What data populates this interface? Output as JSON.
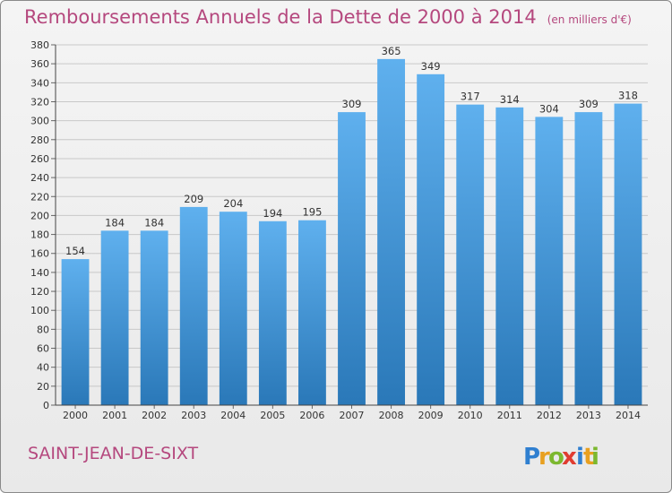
{
  "title": "Remboursements Annuels de la Dette de 2000 à 2014",
  "unit": "(en milliers d'€)",
  "city": "SAINT-JEAN-DE-SIXT",
  "logo": {
    "text": "Proxiti",
    "letters": [
      "P",
      "r",
      "o",
      "x",
      "i",
      "t",
      "i"
    ]
  },
  "colors": {
    "title": "#b5487e",
    "bar_top": "#5fb0ee",
    "bar_bottom": "#2a78b8",
    "logo": [
      "#2f7fd0",
      "#e8a020",
      "#7cb82f",
      "#e03c31",
      "#2f7fd0",
      "#e8a020",
      "#7cb82f"
    ]
  },
  "chart_data": {
    "type": "bar",
    "title": "Remboursements Annuels de la Dette de 2000 à 2014",
    "xlabel": "",
    "ylabel": "",
    "categories": [
      "2000",
      "2001",
      "2002",
      "2003",
      "2004",
      "2005",
      "2006",
      "2007",
      "2008",
      "2009",
      "2010",
      "2011",
      "2012",
      "2013",
      "2014"
    ],
    "values": [
      154,
      184,
      184,
      209,
      204,
      194,
      195,
      309,
      365,
      349,
      317,
      314,
      304,
      309,
      318
    ],
    "ylim": [
      0,
      380
    ],
    "ytick_step": 20,
    "grid": true
  }
}
